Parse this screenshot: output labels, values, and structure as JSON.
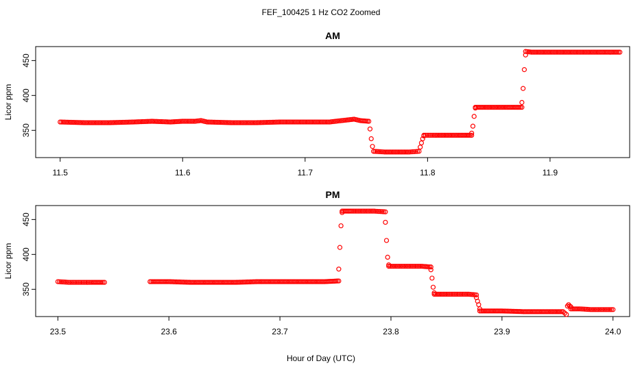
{
  "figure": {
    "title": "FEF_100425  1 Hz CO2 Zoomed",
    "xlabel": "Hour of Day (UTC)",
    "marker_color": "#ff0000"
  },
  "chart_data": [
    {
      "type": "scatter",
      "title": "AM",
      "ylabel": "Licor ppm",
      "xlim": [
        11.48,
        11.965
      ],
      "ylim": [
        311,
        470
      ],
      "xticks": [
        "11.5",
        "11.6",
        "11.7",
        "11.8",
        "11.9"
      ],
      "yticks": [
        "350",
        "400",
        "450"
      ],
      "grid": false,
      "legend": "none",
      "series": [
        {
          "marker": "open-circle",
          "segments": [
            {
              "x": [
                11.5,
                11.52,
                11.54,
                11.56,
                11.575,
                11.59,
                11.6,
                11.61,
                11.615,
                11.62,
                11.64,
                11.66,
                11.68,
                11.7,
                11.72,
                11.73,
                11.74,
                11.745,
                11.752
              ],
              "y": [
                362,
                361,
                361,
                362,
                363,
                362,
                363,
                363,
                364,
                362,
                361,
                361,
                362,
                362,
                362,
                364,
                366,
                364,
                363
              ]
            },
            {
              "x": [
                11.753,
                11.754,
                11.755,
                11.756
              ],
              "y": [
                352,
                338,
                327,
                320
              ]
            },
            {
              "x": [
                11.756,
                11.765,
                11.775,
                11.785,
                11.793
              ],
              "y": [
                320,
                319,
                319,
                319,
                320
              ]
            },
            {
              "x": [
                11.794,
                11.795,
                11.796,
                11.797
              ],
              "y": [
                326,
                332,
                338,
                342
              ]
            },
            {
              "x": [
                11.797,
                11.805,
                11.815,
                11.825,
                11.836
              ],
              "y": [
                343,
                343,
                343,
                343,
                343
              ]
            },
            {
              "x": [
                11.836,
                11.837,
                11.838,
                11.839
              ],
              "y": [
                346,
                356,
                370,
                382
              ]
            },
            {
              "x": [
                11.839,
                11.845,
                11.855,
                11.865,
                11.877
              ],
              "y": [
                383,
                383,
                383,
                383,
                383
              ]
            },
            {
              "x": [
                11.877,
                11.878,
                11.879,
                11.88
              ],
              "y": [
                390,
                410,
                437,
                458
              ]
            },
            {
              "x": [
                11.88,
                11.885,
                11.9,
                11.92,
                11.94,
                11.957
              ],
              "y": [
                463,
                462,
                462,
                462,
                462,
                462
              ]
            }
          ]
        }
      ]
    },
    {
      "type": "scatter",
      "title": "PM",
      "ylabel": "Licor ppm",
      "xlim": [
        23.48,
        24.015
      ],
      "ylim": [
        311,
        470
      ],
      "xticks": [
        "23.5",
        "23.6",
        "23.7",
        "23.8",
        "23.9",
        "24.0"
      ],
      "yticks": [
        "350",
        "400",
        "450"
      ],
      "grid": false,
      "legend": "none",
      "series": [
        {
          "marker": "open-circle",
          "segments": [
            {
              "x": [
                23.5,
                23.51,
                23.52,
                23.53,
                23.542
              ],
              "y": [
                361,
                360,
                360,
                360,
                360
              ]
            },
            {
              "x": [
                23.583,
                23.6,
                23.62,
                23.64,
                23.66,
                23.68,
                23.7,
                23.72,
                23.74,
                23.753
              ],
              "y": [
                361,
                361,
                360,
                360,
                360,
                361,
                361,
                361,
                361,
                362
              ]
            },
            {
              "x": [
                23.753,
                23.754,
                23.755,
                23.756
              ],
              "y": [
                379,
                410,
                441,
                460
              ]
            },
            {
              "x": [
                23.756,
                23.765,
                23.775,
                23.785,
                23.795
              ],
              "y": [
                462,
                462,
                462,
                462,
                461
              ]
            },
            {
              "x": [
                23.795,
                23.796,
                23.797,
                23.798
              ],
              "y": [
                446,
                420,
                396,
                385
              ]
            },
            {
              "x": [
                23.798,
                23.808,
                23.818,
                23.828,
                23.836
              ],
              "y": [
                383,
                383,
                383,
                383,
                382
              ]
            },
            {
              "x": [
                23.836,
                23.837,
                23.838,
                23.839
              ],
              "y": [
                378,
                366,
                353,
                345
              ]
            },
            {
              "x": [
                23.839,
                23.85,
                23.86,
                23.87,
                23.877
              ],
              "y": [
                343,
                343,
                343,
                343,
                342
              ]
            },
            {
              "x": [
                23.877,
                23.878,
                23.879,
                23.88
              ],
              "y": [
                338,
                333,
                328,
                322
              ]
            },
            {
              "x": [
                23.88,
                23.9,
                23.92,
                23.94,
                23.955,
                23.958
              ],
              "y": [
                319,
                319,
                318,
                318,
                318,
                314
              ]
            },
            {
              "x": [
                23.959,
                23.96,
                23.961,
                23.962
              ],
              "y": [
                326,
                328,
                326,
                325
              ]
            },
            {
              "x": [
                23.962,
                23.97,
                23.98,
                23.99,
                24.0
              ],
              "y": [
                322,
                322,
                321,
                321,
                321
              ]
            }
          ]
        }
      ]
    }
  ]
}
